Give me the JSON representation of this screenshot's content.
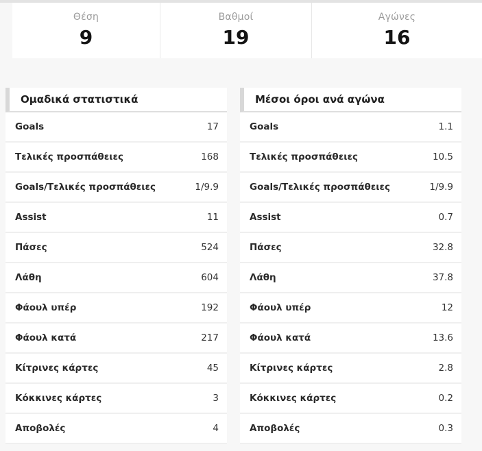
{
  "colors": {
    "page_background": "#f7f7f7",
    "card_background": "#ffffff",
    "top_strip": "#e3e3e3",
    "accent_bar": "#d8d8d8",
    "muted_label": "#9b9b9b",
    "text": "#2a2a2a"
  },
  "summary": {
    "cards": [
      {
        "label": "Θέση",
        "value": "9"
      },
      {
        "label": "Βαθμοί",
        "value": "19"
      },
      {
        "label": "Αγώνες",
        "value": "16"
      }
    ]
  },
  "tables": [
    {
      "title": "Ομαδικά στατιστικά",
      "rows": [
        {
          "label": "Goals",
          "value": "17"
        },
        {
          "label": "Τελικές προσπάθειες",
          "value": "168"
        },
        {
          "label": "Goals/Τελικές προσπάθειες",
          "value": "1/9.9"
        },
        {
          "label": "Assist",
          "value": "11"
        },
        {
          "label": "Πάσες",
          "value": "524"
        },
        {
          "label": "Λάθη",
          "value": "604"
        },
        {
          "label": "Φάουλ υπέρ",
          "value": "192"
        },
        {
          "label": "Φάουλ κατά",
          "value": "217"
        },
        {
          "label": "Κίτρινες κάρτες",
          "value": "45"
        },
        {
          "label": "Κόκκινες κάρτες",
          "value": "3"
        },
        {
          "label": "Αποβολές",
          "value": "4"
        }
      ]
    },
    {
      "title": "Μέσοι όροι ανά αγώνα",
      "rows": [
        {
          "label": "Goals",
          "value": "1.1"
        },
        {
          "label": "Τελικές προσπάθειες",
          "value": "10.5"
        },
        {
          "label": "Goals/Τελικές προσπάθειες",
          "value": "1/9.9"
        },
        {
          "label": "Assist",
          "value": "0.7"
        },
        {
          "label": "Πάσες",
          "value": "32.8"
        },
        {
          "label": "Λάθη",
          "value": "37.8"
        },
        {
          "label": "Φάουλ υπέρ",
          "value": "12"
        },
        {
          "label": "Φάουλ κατά",
          "value": "13.6"
        },
        {
          "label": "Κίτρινες κάρτες",
          "value": "2.8"
        },
        {
          "label": "Κόκκινες κάρτες",
          "value": "0.2"
        },
        {
          "label": "Αποβολές",
          "value": "0.3"
        }
      ]
    }
  ]
}
